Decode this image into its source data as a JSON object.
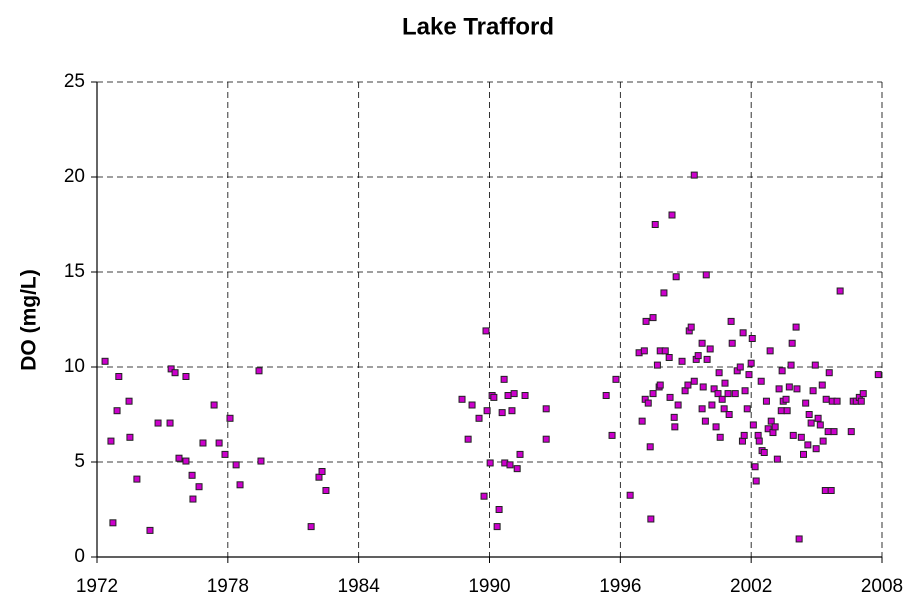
{
  "chart_data": {
    "type": "scatter",
    "title": "Lake Trafford",
    "y_label": "DO (mg/L)",
    "xlim": [
      1972,
      2008
    ],
    "xticks": [
      1972,
      1978,
      1984,
      1990,
      1996,
      2002,
      2008
    ],
    "ylim": [
      0,
      25
    ],
    "yticks": [
      0,
      5,
      10,
      15,
      20,
      25
    ],
    "grid": true,
    "series": [
      {
        "color": "#cc00cc",
        "x": [
          1972.37,
          1972.64,
          1972.73,
          1972.92,
          1973.0,
          1973.47,
          1973.51,
          1973.83,
          1974.43,
          1974.8,
          1975.35,
          1975.4,
          1975.58,
          1975.76,
          1976.08,
          1976.08,
          1976.36,
          1976.4,
          1976.68,
          1976.86,
          1977.37,
          1977.6,
          1977.87,
          1978.1,
          1978.38,
          1978.56,
          1979.43,
          1979.52,
          1981.82,
          1982.18,
          1982.32,
          1982.5,
          1988.74,
          1989.02,
          1989.2,
          1989.52,
          1989.75,
          1989.84,
          1989.89,
          1990.03,
          1990.12,
          1990.2,
          1990.35,
          1990.44,
          1990.58,
          1990.67,
          1990.7,
          1990.85,
          1990.94,
          1991.03,
          1991.13,
          1991.27,
          1991.4,
          1991.63,
          1992.6,
          1992.6,
          1995.35,
          1995.62,
          1995.8,
          1996.45,
          1996.86,
          1997.0,
          1997.1,
          1997.14,
          1997.18,
          1997.28,
          1997.37,
          1997.4,
          1997.5,
          1997.5,
          1997.6,
          1997.7,
          1997.78,
          1997.83,
          1997.83,
          1998.0,
          1998.06,
          1998.24,
          1998.28,
          1998.37,
          1998.47,
          1998.5,
          1998.56,
          1998.65,
          1998.83,
          1998.97,
          1999.1,
          1999.16,
          1999.25,
          1999.39,
          1999.39,
          1999.48,
          1999.57,
          1999.75,
          1999.75,
          1999.8,
          1999.9,
          1999.94,
          1999.98,
          2000.12,
          2000.2,
          2000.3,
          2000.39,
          2000.48,
          2000.53,
          2000.58,
          2000.67,
          2000.76,
          2000.8,
          2000.94,
          2000.99,
          2001.08,
          2001.13,
          2001.27,
          2001.36,
          2001.5,
          2001.6,
          2001.63,
          2001.68,
          2001.72,
          2001.82,
          2001.9,
          2002.0,
          2002.05,
          2002.1,
          2002.18,
          2002.23,
          2002.32,
          2002.37,
          2002.46,
          2002.5,
          2002.6,
          2002.7,
          2002.78,
          2002.87,
          2002.92,
          2003.0,
          2003.1,
          2003.2,
          2003.28,
          2003.38,
          2003.42,
          2003.47,
          2003.6,
          2003.65,
          2003.75,
          2003.83,
          2003.88,
          2003.93,
          2004.06,
          2004.1,
          2004.2,
          2004.3,
          2004.4,
          2004.5,
          2004.6,
          2004.66,
          2004.75,
          2004.84,
          2004.94,
          2004.98,
          2005.07,
          2005.17,
          2005.26,
          2005.3,
          2005.4,
          2005.44,
          2005.53,
          2005.58,
          2005.67,
          2005.72,
          2005.8,
          2005.94,
          2006.08,
          2006.59,
          2006.68,
          2006.82,
          2006.96,
          2007.05,
          2007.14,
          2007.83
        ],
        "values": [
          10.3,
          6.1,
          1.8,
          7.7,
          9.5,
          8.2,
          6.3,
          4.1,
          1.4,
          7.05,
          7.05,
          9.9,
          9.7,
          5.2,
          5.05,
          9.5,
          4.3,
          3.05,
          3.7,
          6.0,
          8.0,
          6.0,
          5.4,
          7.3,
          4.85,
          3.8,
          9.8,
          5.05,
          1.6,
          4.2,
          4.5,
          3.5,
          8.3,
          6.2,
          8.0,
          7.3,
          3.2,
          11.9,
          7.7,
          4.95,
          8.5,
          8.4,
          1.6,
          2.5,
          7.6,
          9.35,
          4.95,
          8.5,
          4.85,
          7.7,
          8.6,
          4.65,
          5.4,
          8.5,
          7.8,
          6.2,
          8.5,
          6.4,
          9.35,
          3.25,
          10.75,
          7.15,
          10.85,
          8.3,
          12.4,
          8.1,
          5.8,
          2.0,
          12.6,
          8.6,
          17.5,
          10.1,
          8.95,
          10.85,
          9.05,
          13.9,
          10.85,
          10.5,
          8.4,
          18.0,
          7.35,
          6.85,
          14.75,
          8.0,
          10.3,
          8.75,
          9.05,
          11.9,
          12.1,
          20.1,
          9.25,
          10.4,
          10.6,
          11.25,
          7.8,
          8.95,
          7.15,
          14.85,
          10.4,
          10.95,
          8.0,
          8.85,
          6.85,
          8.6,
          9.7,
          6.3,
          8.3,
          7.8,
          9.15,
          8.6,
          7.5,
          12.4,
          11.25,
          8.6,
          9.8,
          10.0,
          6.1,
          11.8,
          6.4,
          8.75,
          7.8,
          9.6,
          10.2,
          11.5,
          6.95,
          4.75,
          4.0,
          6.4,
          6.1,
          9.25,
          5.6,
          5.5,
          8.2,
          6.75,
          10.85,
          7.15,
          6.55,
          6.85,
          5.15,
          8.85,
          7.7,
          9.8,
          8.2,
          8.3,
          7.7,
          8.95,
          10.1,
          11.25,
          6.4,
          12.1,
          8.85,
          0.95,
          6.3,
          5.4,
          8.1,
          5.9,
          7.5,
          7.05,
          8.75,
          10.1,
          5.7,
          7.3,
          6.95,
          9.05,
          6.1,
          3.5,
          8.3,
          6.6,
          9.7,
          3.5,
          8.2,
          6.6,
          8.2,
          14.0,
          6.6,
          8.2,
          8.2,
          8.4,
          8.2,
          8.6,
          9.6
        ]
      }
    ]
  }
}
